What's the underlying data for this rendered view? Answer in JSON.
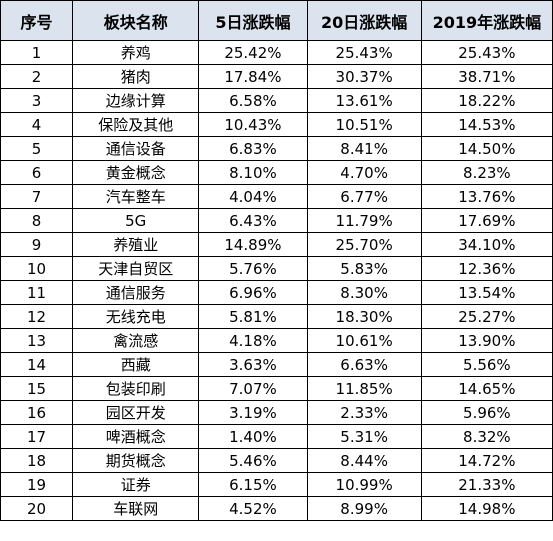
{
  "table": {
    "headers": [
      "序号",
      "板块名称",
      "5日涨跌幅",
      "20日涨跌幅",
      "2019年涨跌幅"
    ],
    "rows": [
      [
        "1",
        "养鸡",
        "25.42%",
        "25.43%",
        "25.43%"
      ],
      [
        "2",
        "猪肉",
        "17.84%",
        "30.37%",
        "38.71%"
      ],
      [
        "3",
        "边缘计算",
        "6.58%",
        "13.61%",
        "18.22%"
      ],
      [
        "4",
        "保险及其他",
        "10.43%",
        "10.51%",
        "14.53%"
      ],
      [
        "5",
        "通信设备",
        "6.83%",
        "8.41%",
        "14.50%"
      ],
      [
        "6",
        "黄金概念",
        "8.10%",
        "4.70%",
        "8.23%"
      ],
      [
        "7",
        "汽车整车",
        "4.04%",
        "6.77%",
        "13.76%"
      ],
      [
        "8",
        "5G",
        "6.43%",
        "11.79%",
        "17.69%"
      ],
      [
        "9",
        "养殖业",
        "14.89%",
        "25.70%",
        "34.10%"
      ],
      [
        "10",
        "天津自贸区",
        "5.76%",
        "5.83%",
        "12.36%"
      ],
      [
        "11",
        "通信服务",
        "6.96%",
        "8.30%",
        "13.54%"
      ],
      [
        "12",
        "无线充电",
        "5.81%",
        "18.30%",
        "25.27%"
      ],
      [
        "13",
        "禽流感",
        "4.18%",
        "10.61%",
        "13.90%"
      ],
      [
        "14",
        "西藏",
        "3.63%",
        "6.63%",
        "5.56%"
      ],
      [
        "15",
        "包装印刷",
        "7.07%",
        "11.85%",
        "14.65%"
      ],
      [
        "16",
        "园区开发",
        "3.19%",
        "2.33%",
        "5.96%"
      ],
      [
        "17",
        "啤酒概念",
        "1.40%",
        "5.31%",
        "8.32%"
      ],
      [
        "18",
        "期货概念",
        "5.46%",
        "8.44%",
        "14.72%"
      ],
      [
        "19",
        "证券",
        "6.15%",
        "10.99%",
        "21.33%"
      ],
      [
        "20",
        "车联网",
        "4.52%",
        "8.99%",
        "14.98%"
      ]
    ]
  },
  "colors": {
    "header_bg": "#dbe3ef",
    "border": "#000000",
    "text": "#000000"
  }
}
